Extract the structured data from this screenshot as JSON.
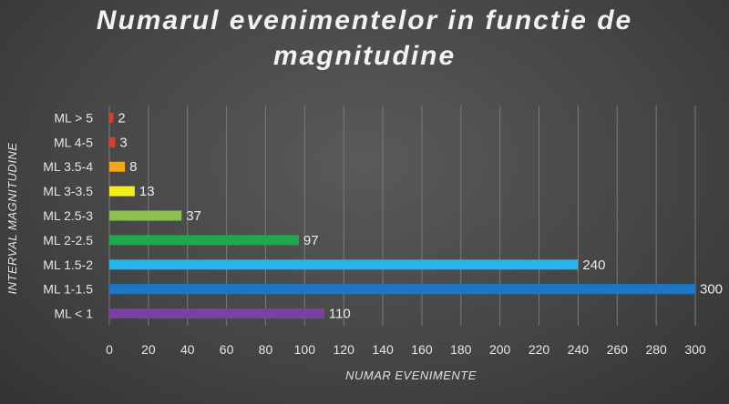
{
  "chart_data": {
    "type": "bar",
    "orientation": "horizontal",
    "title_lines": [
      "Numarul evenimentelor in functie de",
      "magnitudine"
    ],
    "xlabel": "NUMAR EVENIMENTE",
    "ylabel": "INTERVAL MAGNITUDINE",
    "categories": [
      "ML > 5",
      "ML  4-5",
      "ML  3.5-4",
      "ML 3-3.5",
      "ML 2.5-3",
      "ML 2-2.5",
      "ML 1.5-2",
      "ML 1-1.5",
      "ML < 1"
    ],
    "values": [
      2,
      3,
      8,
      13,
      37,
      97,
      240,
      300,
      110
    ],
    "colors": [
      "#e03c2c",
      "#e03c2c",
      "#f2a81d",
      "#f4ee1c",
      "#8cc152",
      "#1fa84f",
      "#27b4ec",
      "#1c78c4",
      "#7b3fa6"
    ],
    "xlim": [
      0,
      300
    ],
    "xticks": [
      "0",
      "20",
      "40",
      "60",
      "80",
      "100",
      "120",
      "140",
      "160",
      "180",
      "200",
      "220",
      "240",
      "260",
      "280",
      "300"
    ],
    "grid": "vertical",
    "legend": "none"
  }
}
